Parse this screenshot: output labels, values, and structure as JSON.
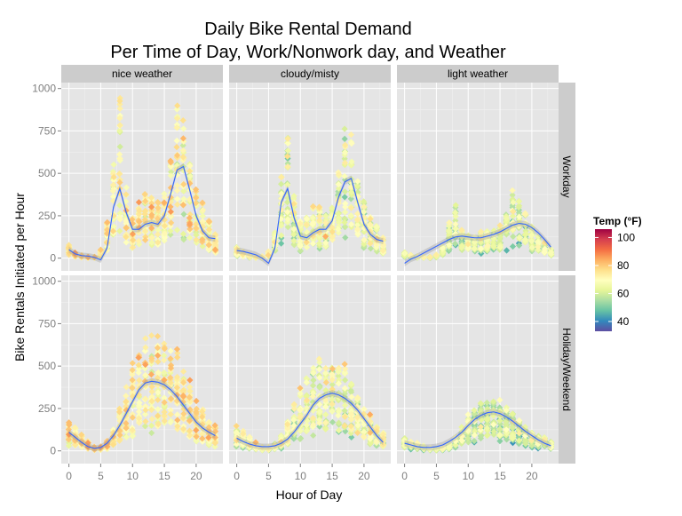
{
  "chart_data": {
    "type": "scatter",
    "title_lines": [
      "Daily Bike Rental Demand",
      "Per Time of Day, Work/Nonwork day, and Weather"
    ],
    "xlabel": "Hour of Day",
    "ylabel": "Bike Rentals Initiated per Hour",
    "x_ticks": [
      0,
      5,
      10,
      15,
      20
    ],
    "y_ticks": [
      0,
      250,
      500,
      750,
      1000
    ],
    "xlim": [
      -1.2,
      24.2
    ],
    "ylim": [
      -75,
      1035
    ],
    "grid": true,
    "columns": [
      "nice weather",
      "cloudy/misty",
      "light weather"
    ],
    "rows": [
      "Workday",
      "Holiday/Weekend"
    ],
    "color_legend": {
      "title": "Temp (°F)",
      "ticks": [
        40,
        60,
        80,
        100
      ],
      "range": [
        33,
        106
      ],
      "colors": [
        "#5E4FA2",
        "#3288BD",
        "#66C2A5",
        "#ABDDA4",
        "#E6F598",
        "#FFFFBF",
        "#FEE08B",
        "#FDAE61",
        "#F46D43",
        "#D53E4F",
        "#9E0142"
      ]
    },
    "smooth_color": "#3366FF",
    "panels": [
      {
        "row": "Workday",
        "column": "nice weather",
        "scatter": 1.0,
        "hourly_mean": [
          45,
          22,
          10,
          5,
          5,
          30,
          120,
          350,
          560,
          260,
          150,
          180,
          220,
          215,
          200,
          240,
          360,
          560,
          500,
          360,
          260,
          190,
          140,
          85
        ],
        "smooth": [
          50,
          25,
          15,
          12,
          5,
          -10,
          60,
          300,
          410,
          270,
          170,
          170,
          200,
          210,
          200,
          250,
          380,
          520,
          540,
          400,
          250,
          160,
          120,
          115
        ],
        "temp_center": 70
      },
      {
        "row": "Workday",
        "column": "cloudy/misty",
        "scatter": 0.9,
        "hourly_mean": [
          45,
          25,
          12,
          6,
          6,
          25,
          100,
          320,
          500,
          240,
          140,
          160,
          190,
          190,
          180,
          210,
          320,
          520,
          460,
          330,
          230,
          170,
          125,
          75
        ],
        "smooth": [
          45,
          40,
          30,
          20,
          0,
          -30,
          60,
          330,
          410,
          240,
          130,
          120,
          150,
          170,
          170,
          220,
          360,
          450,
          470,
          330,
          200,
          140,
          110,
          100
        ],
        "temp_center": 64
      },
      {
        "row": "Workday",
        "column": "light weather",
        "scatter": 0.75,
        "hourly_mean": [
          25,
          14,
          8,
          5,
          5,
          15,
          50,
          160,
          250,
          140,
          100,
          110,
          120,
          120,
          120,
          140,
          200,
          300,
          260,
          200,
          140,
          100,
          70,
          45
        ],
        "smooth": [
          -30,
          -5,
          10,
          30,
          50,
          70,
          90,
          110,
          125,
          130,
          125,
          120,
          120,
          130,
          140,
          155,
          175,
          195,
          205,
          200,
          180,
          150,
          110,
          65
        ],
        "temp_center": 60
      },
      {
        "row": "Holiday/Weekend",
        "column": "nice weather",
        "scatter": 1.0,
        "hourly_mean": [
          110,
          85,
          60,
          35,
          15,
          15,
          35,
          80,
          150,
          230,
          300,
          360,
          400,
          410,
          400,
          390,
          370,
          340,
          290,
          230,
          180,
          150,
          120,
          90
        ],
        "smooth": [
          110,
          80,
          50,
          25,
          15,
          20,
          45,
          90,
          150,
          220,
          290,
          360,
          400,
          410,
          405,
          390,
          360,
          320,
          270,
          220,
          170,
          135,
          110,
          90
        ],
        "temp_center": 72
      },
      {
        "row": "Holiday/Weekend",
        "column": "cloudy/misty",
        "scatter": 0.95,
        "hourly_mean": [
          90,
          70,
          50,
          30,
          15,
          15,
          30,
          60,
          110,
          170,
          230,
          280,
          310,
          330,
          340,
          340,
          320,
          290,
          250,
          200,
          150,
          120,
          95,
          70
        ],
        "smooth": [
          75,
          55,
          40,
          30,
          25,
          25,
          30,
          45,
          70,
          110,
          160,
          210,
          270,
          310,
          330,
          340,
          330,
          310,
          280,
          240,
          190,
          140,
          90,
          50
        ],
        "temp_center": 64
      },
      {
        "row": "Holiday/Weekend",
        "column": "light weather",
        "scatter": 0.8,
        "hourly_mean": [
          55,
          40,
          30,
          20,
          12,
          10,
          15,
          30,
          60,
          100,
          140,
          170,
          200,
          210,
          210,
          200,
          185,
          160,
          130,
          100,
          80,
          65,
          55,
          40
        ],
        "smooth": [
          45,
          35,
          25,
          20,
          20,
          25,
          35,
          55,
          80,
          110,
          150,
          185,
          210,
          225,
          230,
          220,
          200,
          175,
          145,
          115,
          90,
          65,
          45,
          30
        ],
        "temp_center": 58
      }
    ]
  }
}
